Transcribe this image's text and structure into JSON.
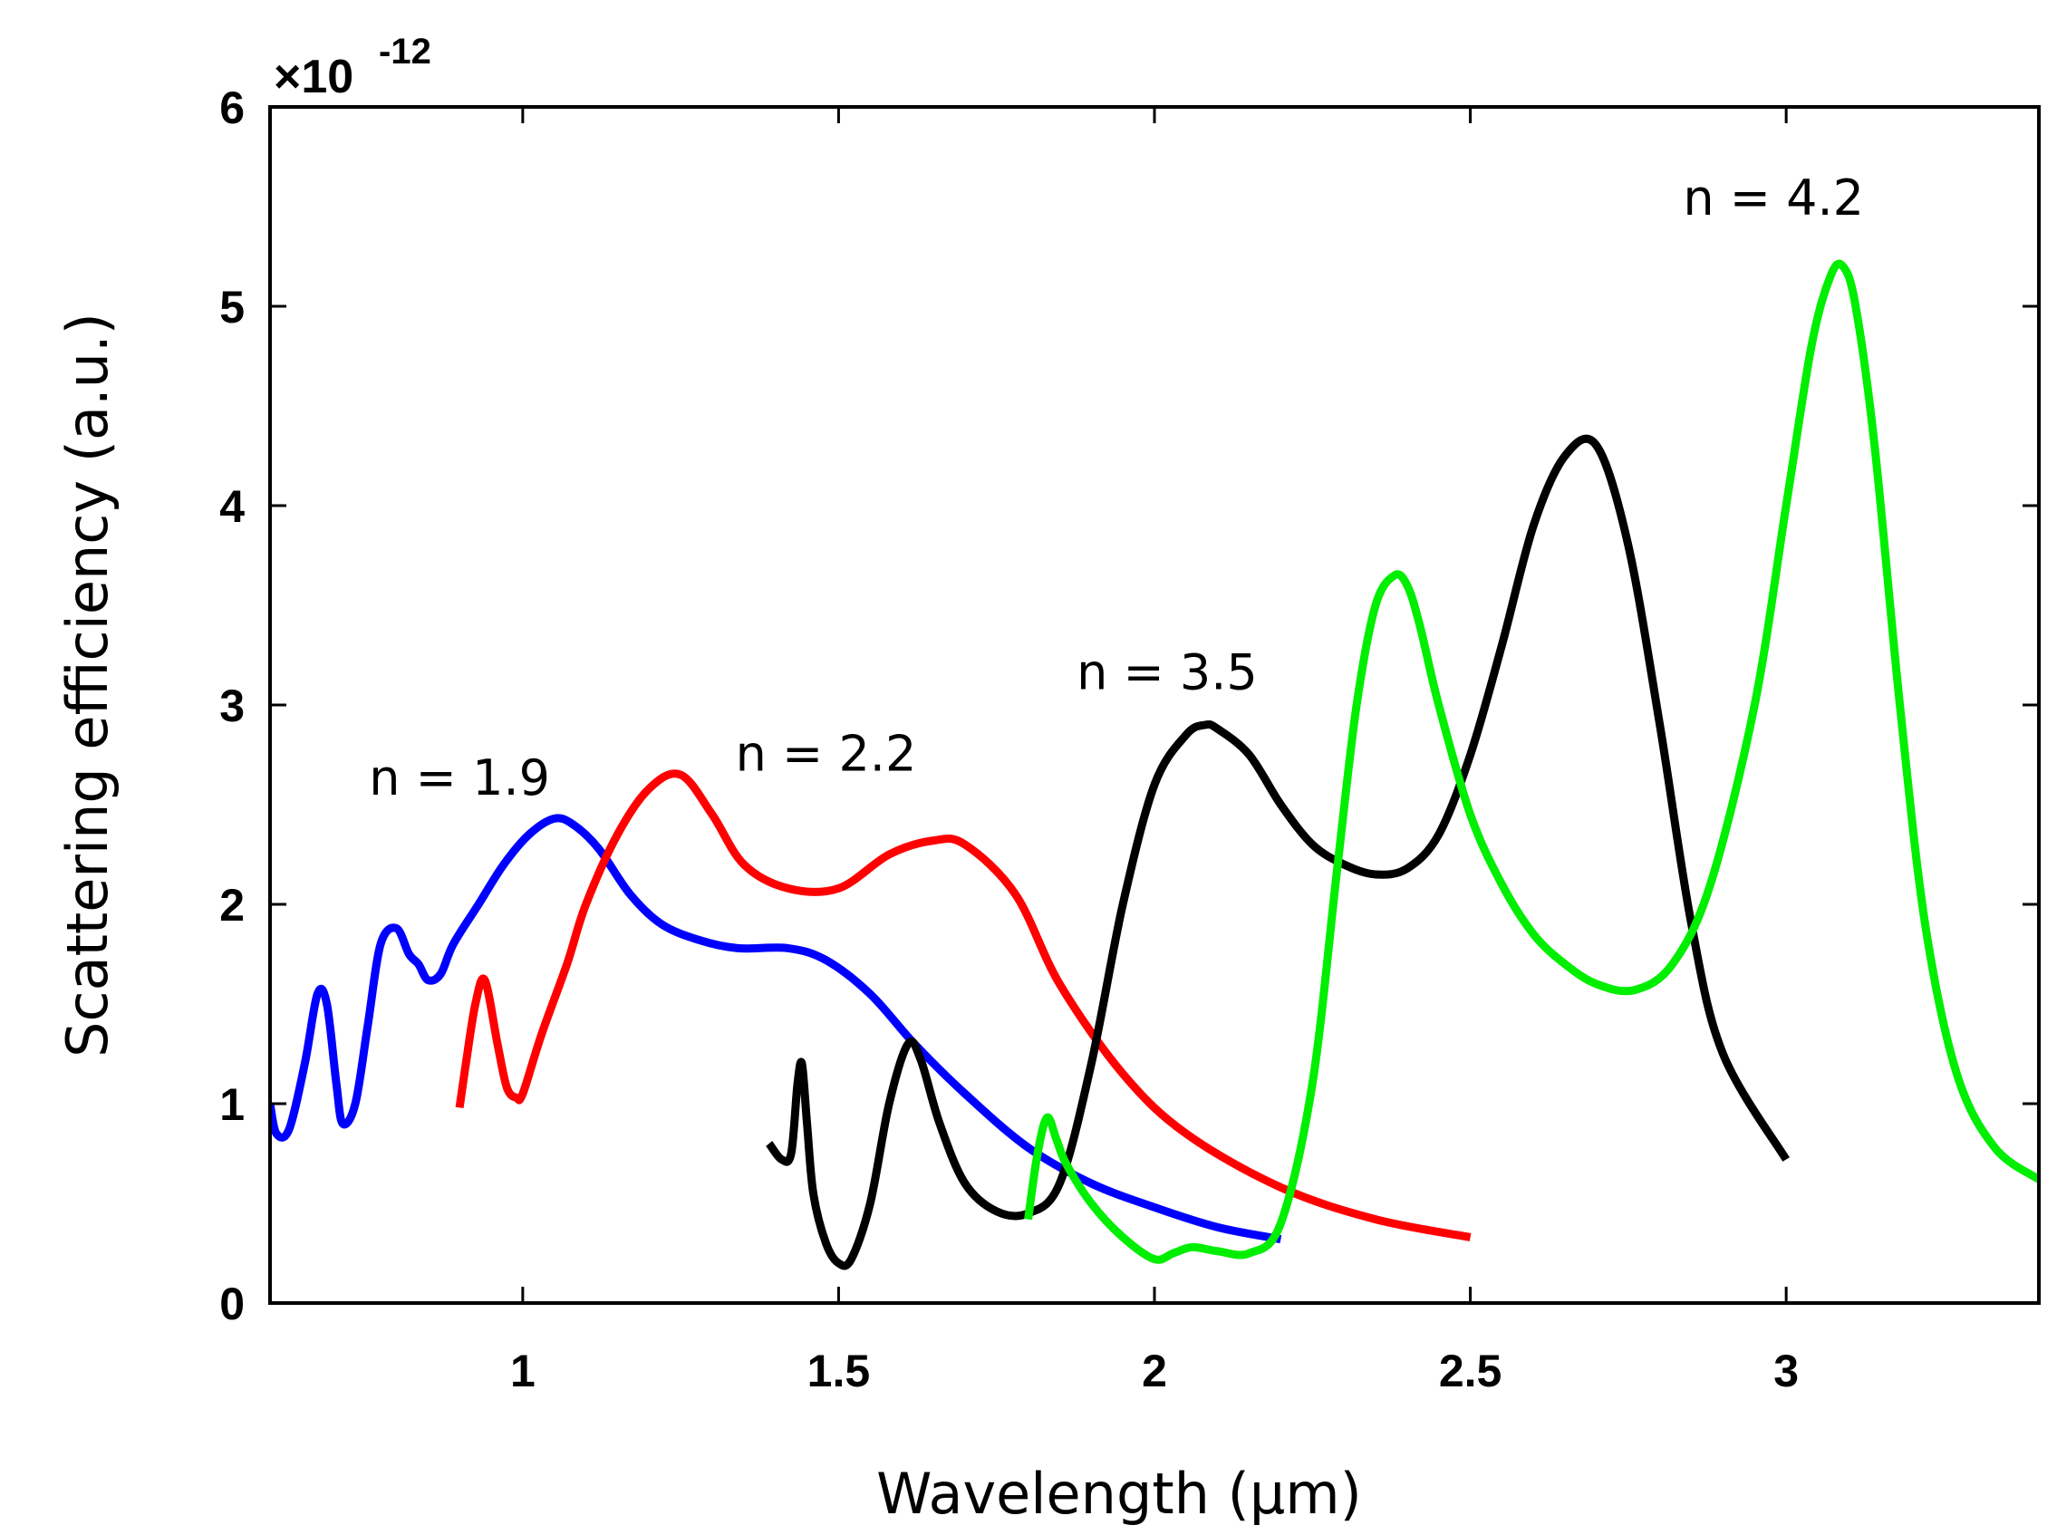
{
  "chart_data": {
    "type": "line",
    "title": "",
    "xlabel": "Wavelength (μm)",
    "ylabel": "Scattering  efficiency (a.u.)",
    "y_multiplier": "×10",
    "y_exponent": "-12",
    "xlim": [
      0.6,
      3.4
    ],
    "ylim": [
      0,
      6
    ],
    "xticks": [
      1,
      1.5,
      2,
      2.5,
      3
    ],
    "xtick_labels": [
      "1",
      "1.5",
      "2",
      "2.5",
      "3"
    ],
    "yticks": [
      0,
      1,
      2,
      3,
      4,
      5,
      6
    ],
    "ytick_labels": [
      "0",
      "1",
      "2",
      "3",
      "4",
      "5",
      "6"
    ],
    "grid": false,
    "series": [
      {
        "name": "n = 1.9",
        "color": "#0000ff",
        "x": [
          0.6,
          0.61,
          0.63,
          0.655,
          0.675,
          0.69,
          0.705,
          0.715,
          0.735,
          0.755,
          0.775,
          0.8,
          0.82,
          0.835,
          0.85,
          0.87,
          0.89,
          0.93,
          0.97,
          1.01,
          1.05,
          1.08,
          1.12,
          1.17,
          1.22,
          1.28,
          1.34,
          1.42,
          1.48,
          1.55,
          1.62,
          1.7,
          1.8,
          1.9,
          2.0,
          2.1,
          2.2
        ],
        "y": [
          1.0,
          0.85,
          0.87,
          1.2,
          1.55,
          1.5,
          1.1,
          0.9,
          1.0,
          1.4,
          1.8,
          1.88,
          1.75,
          1.7,
          1.62,
          1.65,
          1.8,
          2.0,
          2.2,
          2.35,
          2.43,
          2.4,
          2.28,
          2.05,
          1.9,
          1.82,
          1.78,
          1.78,
          1.72,
          1.55,
          1.3,
          1.05,
          0.78,
          0.6,
          0.48,
          0.38,
          0.32
        ]
      },
      {
        "name": "n = 2.2",
        "color": "#ff0000",
        "x": [
          0.9,
          0.91,
          0.925,
          0.94,
          0.96,
          0.975,
          0.99,
          1.0,
          1.03,
          1.07,
          1.1,
          1.15,
          1.2,
          1.25,
          1.3,
          1.35,
          1.42,
          1.5,
          1.58,
          1.65,
          1.7,
          1.78,
          1.85,
          1.95,
          2.05,
          2.2,
          2.35,
          2.5
        ],
        "y": [
          0.98,
          1.2,
          1.5,
          1.62,
          1.3,
          1.08,
          1.03,
          1.05,
          1.35,
          1.7,
          2.0,
          2.35,
          2.58,
          2.65,
          2.45,
          2.2,
          2.08,
          2.08,
          2.25,
          2.32,
          2.3,
          2.05,
          1.6,
          1.15,
          0.85,
          0.58,
          0.42,
          0.33
        ]
      },
      {
        "name": "n = 3.5",
        "color": "#000000",
        "x": [
          1.39,
          1.41,
          1.425,
          1.435,
          1.442,
          1.45,
          1.46,
          1.48,
          1.5,
          1.52,
          1.55,
          1.58,
          1.61,
          1.63,
          1.66,
          1.7,
          1.75,
          1.8,
          1.85,
          1.9,
          1.95,
          2.0,
          2.05,
          2.08,
          2.1,
          2.15,
          2.2,
          2.25,
          2.3,
          2.35,
          2.4,
          2.45,
          2.5,
          2.55,
          2.6,
          2.65,
          2.7,
          2.75,
          2.8,
          2.85,
          2.9,
          3.0
        ],
        "y": [
          0.8,
          0.72,
          0.75,
          1.1,
          1.2,
          0.9,
          0.55,
          0.3,
          0.2,
          0.22,
          0.5,
          1.0,
          1.3,
          1.22,
          0.9,
          0.6,
          0.46,
          0.45,
          0.6,
          1.2,
          2.0,
          2.6,
          2.85,
          2.9,
          2.88,
          2.75,
          2.5,
          2.3,
          2.2,
          2.15,
          2.18,
          2.35,
          2.75,
          3.3,
          3.9,
          4.25,
          4.3,
          3.8,
          2.9,
          1.9,
          1.25,
          0.72
        ]
      },
      {
        "name": "n = 4.2",
        "color": "#00ee00",
        "x": [
          1.8,
          1.815,
          1.83,
          1.845,
          1.86,
          1.9,
          1.95,
          2.0,
          2.03,
          2.06,
          2.1,
          2.15,
          2.2,
          2.25,
          2.29,
          2.32,
          2.35,
          2.38,
          2.4,
          2.42,
          2.45,
          2.5,
          2.55,
          2.6,
          2.65,
          2.7,
          2.76,
          2.82,
          2.88,
          2.95,
          3.0,
          3.04,
          3.07,
          3.09,
          3.11,
          3.14,
          3.18,
          3.22,
          3.27,
          3.33,
          3.4
        ],
        "y": [
          0.42,
          0.75,
          0.93,
          0.82,
          0.7,
          0.5,
          0.33,
          0.22,
          0.25,
          0.28,
          0.26,
          0.25,
          0.4,
          1.1,
          2.2,
          3.0,
          3.5,
          3.65,
          3.6,
          3.4,
          3.0,
          2.45,
          2.1,
          1.85,
          1.7,
          1.6,
          1.57,
          1.7,
          2.1,
          3.0,
          4.0,
          4.8,
          5.15,
          5.2,
          5.0,
          4.3,
          3.0,
          1.9,
          1.15,
          0.78,
          0.62
        ]
      }
    ],
    "annotations": [
      {
        "text": "n = 1.9",
        "x": 0.9,
        "y": 2.55
      },
      {
        "text": "n = 2.2",
        "x": 1.48,
        "y": 2.67
      },
      {
        "text": "n = 3.5",
        "x": 2.02,
        "y": 3.08
      },
      {
        "text": "n = 4.2",
        "x": 2.98,
        "y": 5.46
      }
    ]
  }
}
